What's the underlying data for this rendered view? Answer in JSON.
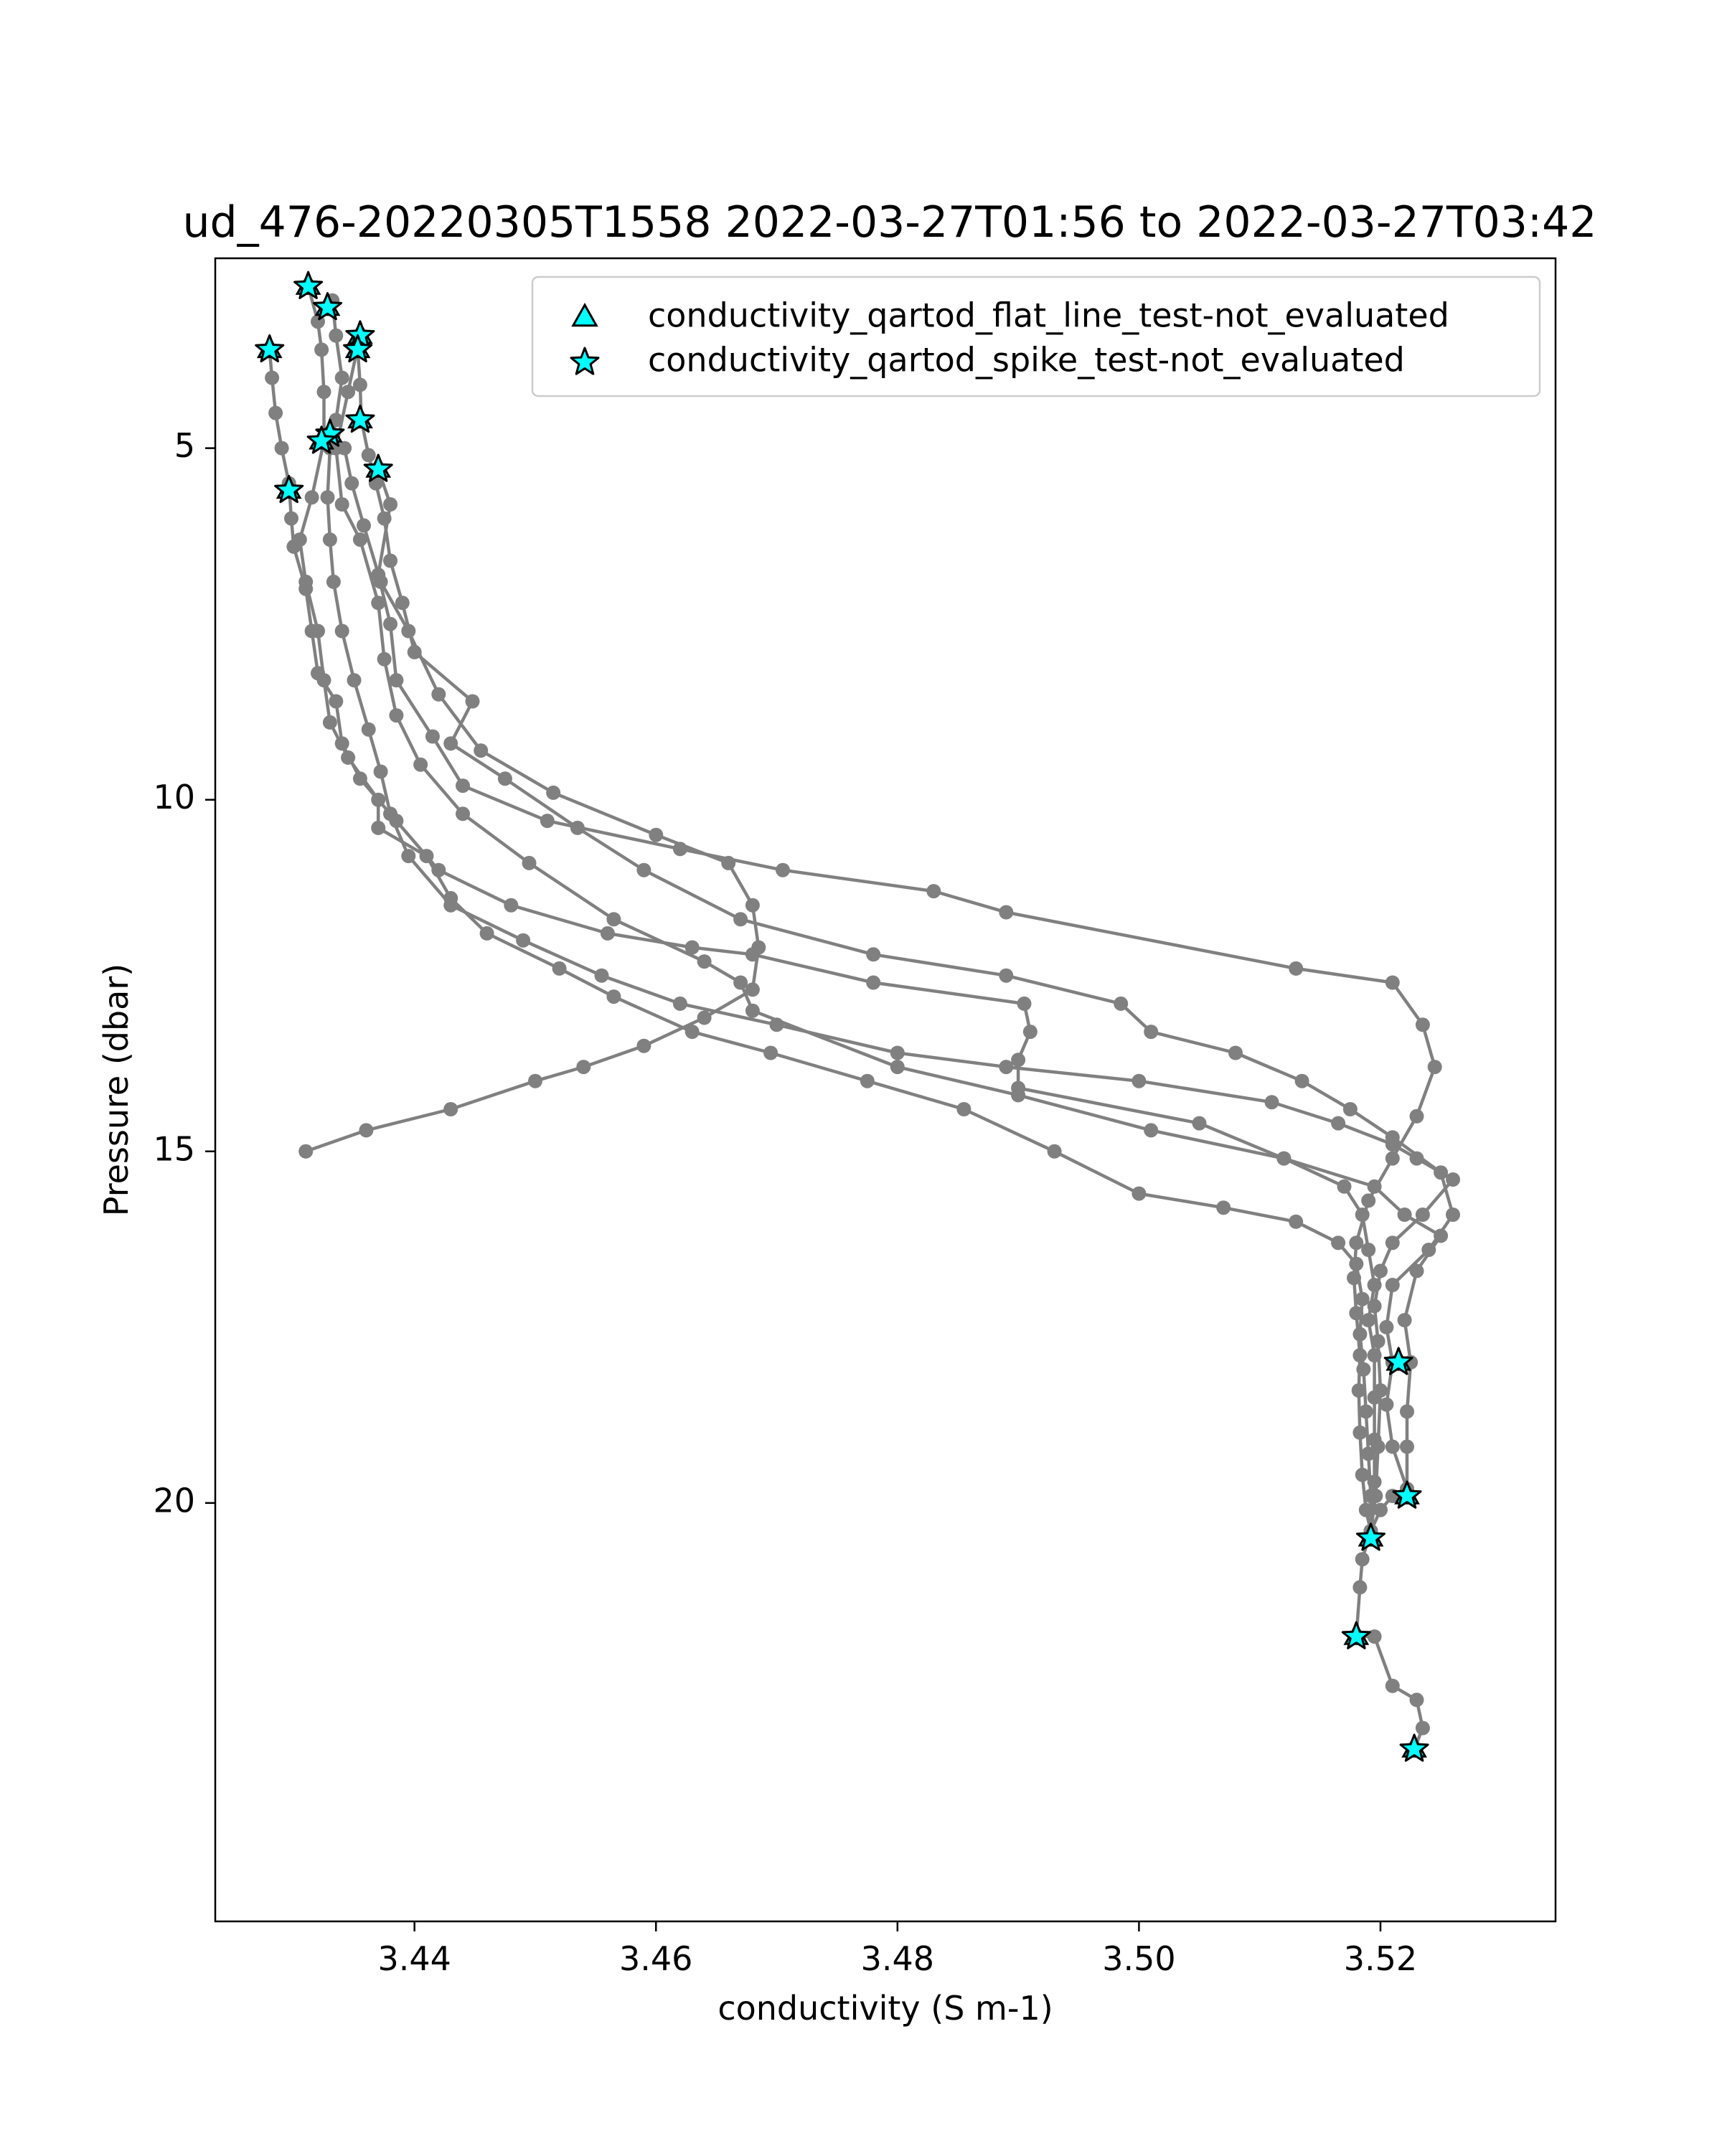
{
  "chart_data": {
    "type": "scatter",
    "title": "ud_476-20220305T1558 2022-03-27T01:56 to 2022-03-27T03:42",
    "xlabel": "conductivity (S m-1)",
    "ylabel": "Pressure (dbar)",
    "xlim": [
      3.4235,
      3.5345
    ],
    "ylim": [
      25.95,
      2.3
    ],
    "y_inverted": true,
    "x_ticks": [
      3.44,
      3.46,
      3.48,
      3.5,
      3.52
    ],
    "x_tick_labels": [
      "3.44",
      "3.46",
      "3.48",
      "3.50",
      "3.52"
    ],
    "y_ticks": [
      5,
      10,
      15,
      20
    ],
    "y_tick_labels": [
      "5",
      "10",
      "15",
      "20"
    ],
    "grid": false,
    "legend": {
      "position": "top-right",
      "entries": [
        {
          "label": "conductivity_qartod_flat_line_test-not_evaluated",
          "marker": "triangle"
        },
        {
          "label": "conductivity_qartod_spike_test-not_evaluated",
          "marker": "star"
        }
      ]
    },
    "colors": {
      "line": "#808080",
      "flag_fill": "#00ffff",
      "flag_edge": "#000000"
    },
    "profiles": [
      [
        [
          3.4355,
          3.4
        ],
        [
          3.4345,
          4.2
        ],
        [
          3.4335,
          5.0
        ],
        [
          3.434,
          5.8
        ],
        [
          3.4355,
          6.3
        ],
        [
          3.437,
          7.2
        ],
        [
          3.4375,
          8.0
        ],
        [
          3.4385,
          8.8
        ],
        [
          3.4405,
          9.5
        ],
        [
          3.444,
          10.2
        ],
        [
          3.4495,
          10.9
        ],
        [
          3.4565,
          11.7
        ],
        [
          3.464,
          12.3
        ],
        [
          3.467,
          12.6
        ],
        [
          3.468,
          13.0
        ],
        [
          3.48,
          13.8
        ],
        [
          3.49,
          14.2
        ],
        [
          3.501,
          14.7
        ],
        [
          3.512,
          15.1
        ],
        [
          3.5195,
          15.5
        ],
        [
          3.522,
          15.9
        ],
        [
          3.525,
          16.2
        ],
        [
          3.523,
          16.7
        ],
        [
          3.522,
          17.4
        ],
        [
          3.5225,
          18.0
        ]
      ],
      [
        [
          3.5225,
          18.0
        ],
        [
          3.5222,
          18.7
        ],
        [
          3.5222,
          19.2
        ],
        [
          3.5222,
          19.8
        ],
        [
          3.521,
          19.9
        ],
        [
          3.52,
          20.1
        ],
        [
          3.5192,
          20.4
        ]
      ],
      [
        [
          3.5192,
          20.4
        ],
        [
          3.5185,
          20.8
        ],
        [
          3.5183,
          21.2
        ],
        [
          3.518,
          21.9
        ],
        [
          3.5195,
          21.9
        ],
        [
          3.521,
          22.6
        ],
        [
          3.523,
          22.8
        ],
        [
          3.5235,
          23.2
        ],
        [
          3.5228,
          23.5
        ]
      ],
      [
        [
          3.437,
          5.3
        ],
        [
          3.438,
          5.8
        ],
        [
          3.437,
          6.8
        ],
        [
          3.438,
          7.5
        ],
        [
          3.4385,
          8.3
        ],
        [
          3.4415,
          9.1
        ],
        [
          3.444,
          9.8
        ],
        [
          3.451,
          10.3
        ],
        [
          3.462,
          10.7
        ],
        [
          3.4705,
          11.0
        ],
        [
          3.483,
          11.3
        ],
        [
          3.489,
          11.6
        ],
        [
          3.513,
          12.4
        ],
        [
          3.521,
          12.6
        ],
        [
          3.5235,
          13.2
        ],
        [
          3.5245,
          13.8
        ],
        [
          3.523,
          14.5
        ],
        [
          3.521,
          15.1
        ],
        [
          3.519,
          15.7
        ],
        [
          3.518,
          16.3
        ],
        [
          3.5178,
          16.8
        ],
        [
          3.518,
          17.3
        ],
        [
          3.5183,
          17.9
        ],
        [
          3.5182,
          18.4
        ],
        [
          3.5183,
          19.0
        ],
        [
          3.5185,
          19.6
        ],
        [
          3.5188,
          20.1
        ],
        [
          3.5192,
          20.4
        ]
      ],
      [
        [
          3.4312,
          2.7
        ],
        [
          3.432,
          3.2
        ],
        [
          3.4323,
          3.6
        ],
        [
          3.4325,
          4.2
        ],
        [
          3.4325,
          4.9
        ],
        [
          3.4315,
          5.7
        ],
        [
          3.4305,
          6.3
        ],
        [
          3.431,
          6.9
        ],
        [
          3.432,
          7.6
        ],
        [
          3.4325,
          8.3
        ],
        [
          3.433,
          8.9
        ],
        [
          3.4345,
          9.4
        ],
        [
          3.437,
          10.0
        ],
        [
          3.437,
          10.4
        ],
        [
          3.441,
          10.8
        ],
        [
          3.443,
          11.4
        ],
        [
          3.446,
          11.9
        ],
        [
          3.452,
          12.4
        ],
        [
          3.4565,
          12.8
        ],
        [
          3.463,
          13.3
        ],
        [
          3.4695,
          13.6
        ],
        [
          3.4775,
          14.0
        ],
        [
          3.4855,
          14.4
        ],
        [
          3.493,
          15.0
        ],
        [
          3.5,
          15.6
        ],
        [
          3.507,
          15.8
        ],
        [
          3.513,
          16.0
        ],
        [
          3.5165,
          16.3
        ],
        [
          3.518,
          16.6
        ],
        [
          3.5185,
          17.1
        ],
        [
          3.5183,
          17.6
        ],
        [
          3.5186,
          18.1
        ],
        [
          3.5188,
          18.7
        ],
        [
          3.519,
          19.3
        ],
        [
          3.5192,
          19.9
        ],
        [
          3.5192,
          20.4
        ]
      ],
      [
        [
          3.428,
          3.6
        ],
        [
          3.4282,
          4.0
        ],
        [
          3.4285,
          4.5
        ],
        [
          3.429,
          5.0
        ],
        [
          3.4296,
          5.5
        ],
        [
          3.4298,
          6.0
        ],
        [
          3.43,
          6.4
        ],
        [
          3.431,
          7.0
        ],
        [
          3.4315,
          7.6
        ],
        [
          3.432,
          8.2
        ],
        [
          3.4335,
          8.6
        ],
        [
          3.434,
          9.2
        ],
        [
          3.4355,
          9.7
        ],
        [
          3.4385,
          10.3
        ],
        [
          3.442,
          11.0
        ],
        [
          3.448,
          11.5
        ],
        [
          3.456,
          11.9
        ],
        [
          3.463,
          12.1
        ],
        [
          3.468,
          12.2
        ],
        [
          3.478,
          12.6
        ],
        [
          3.4905,
          12.9
        ],
        [
          3.491,
          13.3
        ],
        [
          3.49,
          13.7
        ],
        [
          3.49,
          14.1
        ],
        [
          3.505,
          14.6
        ],
        [
          3.512,
          15.1
        ],
        [
          3.517,
          15.5
        ],
        [
          3.5185,
          15.9
        ],
        [
          3.519,
          16.4
        ],
        [
          3.5195,
          16.9
        ],
        [
          3.519,
          17.4
        ],
        [
          3.5195,
          17.9
        ],
        [
          3.5195,
          18.5
        ],
        [
          3.5195,
          19.1
        ],
        [
          3.5195,
          19.7
        ],
        [
          3.5192,
          20.4
        ]
      ],
      [
        [
          3.4332,
          2.9
        ],
        [
          3.4335,
          3.4
        ],
        [
          3.434,
          4.0
        ],
        [
          3.4335,
          4.6
        ],
        [
          3.433,
          5.0
        ],
        [
          3.4328,
          5.7
        ],
        [
          3.433,
          6.3
        ],
        [
          3.4333,
          6.9
        ],
        [
          3.434,
          7.6
        ],
        [
          3.435,
          8.3
        ],
        [
          3.4362,
          9.0
        ],
        [
          3.4372,
          9.6
        ],
        [
          3.438,
          10.2
        ],
        [
          3.4395,
          10.8
        ],
        [
          3.443,
          11.5
        ],
        [
          3.449,
          12.0
        ],
        [
          3.4555,
          12.5
        ],
        [
          3.462,
          12.9
        ],
        [
          3.47,
          13.2
        ],
        [
          3.48,
          13.6
        ],
        [
          3.489,
          13.8
        ],
        [
          3.5,
          14.0
        ],
        [
          3.511,
          14.3
        ],
        [
          3.5165,
          14.6
        ],
        [
          3.521,
          14.9
        ],
        [
          3.523,
          15.1
        ],
        [
          3.526,
          15.4
        ],
        [
          3.5235,
          15.9
        ],
        [
          3.521,
          16.3
        ],
        [
          3.52,
          16.7
        ],
        [
          3.5195,
          17.2
        ],
        [
          3.5198,
          17.7
        ],
        [
          3.52,
          18.4
        ],
        [
          3.5198,
          19.2
        ],
        [
          3.5196,
          19.9
        ],
        [
          3.5192,
          20.4
        ]
      ],
      [
        [
          3.4353,
          3.6
        ],
        [
          3.4355,
          4.1
        ],
        [
          3.4356,
          4.6
        ],
        [
          3.4362,
          5.1
        ],
        [
          3.4368,
          5.5
        ],
        [
          3.4375,
          6.0
        ],
        [
          3.438,
          6.6
        ],
        [
          3.439,
          7.2
        ],
        [
          3.44,
          7.9
        ],
        [
          3.4448,
          8.6
        ],
        [
          3.443,
          9.2
        ],
        [
          3.4475,
          9.7
        ],
        [
          3.4535,
          10.4
        ],
        [
          3.459,
          11.0
        ],
        [
          3.467,
          11.7
        ],
        [
          3.478,
          12.2
        ],
        [
          3.489,
          12.5
        ],
        [
          3.4985,
          12.9
        ],
        [
          3.501,
          13.3
        ],
        [
          3.508,
          13.6
        ],
        [
          3.5135,
          14.0
        ],
        [
          3.5175,
          14.4
        ],
        [
          3.521,
          14.8
        ],
        [
          3.525,
          15.3
        ],
        [
          3.526,
          15.9
        ],
        [
          3.524,
          16.4
        ],
        [
          3.521,
          16.9
        ],
        [
          3.5205,
          17.5
        ],
        [
          3.521,
          18.0
        ],
        [
          3.5205,
          18.6
        ],
        [
          3.521,
          19.2
        ],
        [
          3.5222,
          19.8
        ]
      ],
      [
        [
          3.4342,
          5.0
        ],
        [
          3.4348,
          5.5
        ],
        [
          3.4358,
          6.1
        ],
        [
          3.4372,
          6.9
        ],
        [
          3.4395,
          7.6
        ],
        [
          3.442,
          8.5
        ],
        [
          3.4455,
          9.3
        ],
        [
          3.4515,
          9.9
        ],
        [
          3.46,
          10.5
        ],
        [
          3.466,
          10.9
        ],
        [
          3.468,
          11.5
        ],
        [
          3.4685,
          12.1
        ],
        [
          3.468,
          12.7
        ],
        [
          3.464,
          13.1
        ],
        [
          3.459,
          13.5
        ],
        [
          3.454,
          13.8
        ],
        [
          3.45,
          14.0
        ],
        [
          3.443,
          14.4
        ],
        [
          3.436,
          14.7
        ],
        [
          3.431,
          15.0
        ]
      ]
    ],
    "flagged_points": [
      [
        3.4312,
        2.7
      ],
      [
        3.4328,
        3.0
      ],
      [
        3.4355,
        3.4
      ],
      [
        3.4353,
        3.6
      ],
      [
        3.428,
        3.6
      ],
      [
        3.4355,
        4.6
      ],
      [
        3.433,
        4.8
      ],
      [
        3.4323,
        4.9
      ],
      [
        3.437,
        5.3
      ],
      [
        3.4296,
        5.6
      ],
      [
        3.5215,
        18.0
      ],
      [
        3.5222,
        19.9
      ],
      [
        3.5192,
        20.5
      ],
      [
        3.518,
        21.9
      ],
      [
        3.5228,
        23.5
      ]
    ]
  }
}
